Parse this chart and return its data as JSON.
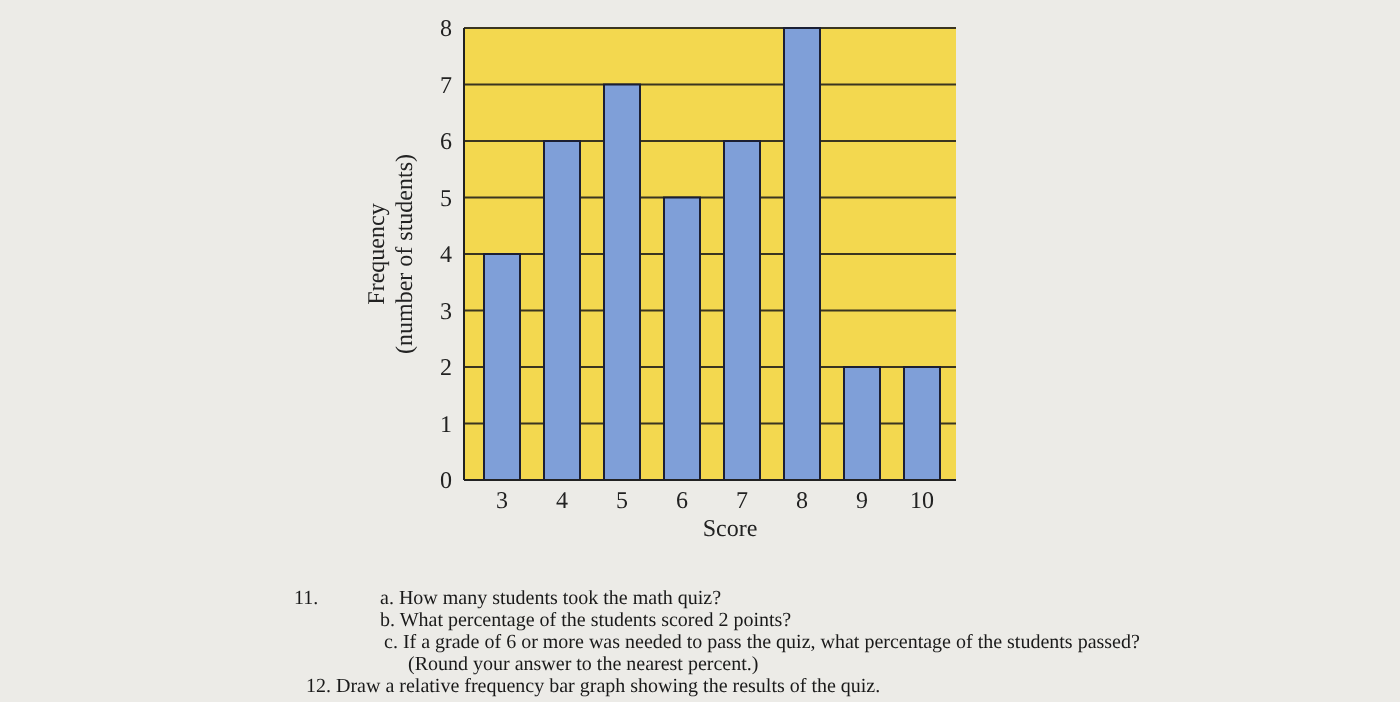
{
  "chart_data": {
    "type": "bar",
    "xlabel": "Score",
    "ylabel": "Frequency\n(number of students)",
    "categories": [
      "3",
      "4",
      "5",
      "6",
      "7",
      "8",
      "9",
      "10"
    ],
    "values": [
      4,
      6,
      7,
      5,
      6,
      8,
      2,
      2
    ],
    "color": "#7f9fd8",
    "ylim": [
      0,
      8
    ],
    "yticks": [
      0,
      1,
      2,
      3,
      4,
      5,
      6,
      7,
      8
    ],
    "grid": "y",
    "annotations": [
      "11.",
      "a. How many students took the math quiz?",
      "b. What percentage of the students scored 2 points?",
      "c. If a grade of 6 or more was needed to pass the quiz, what percentage of the students passed? (Round your answer to the nearest percent.)",
      "12. Draw a relative frequency bar graph showing the results of the quiz."
    ]
  }
}
